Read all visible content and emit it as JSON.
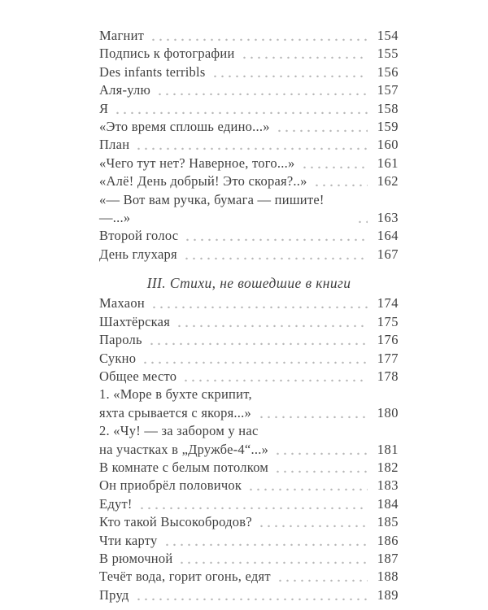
{
  "page": {
    "background_color": "#ffffff",
    "text_color": "#404040",
    "leader_dot_color": "#b7b7b7"
  },
  "toc": {
    "sections": [
      {
        "heading": null,
        "items": [
          {
            "lines": [
              "Магнит"
            ],
            "page": "154"
          },
          {
            "lines": [
              "Подпись к фотографии"
            ],
            "page": "155"
          },
          {
            "lines": [
              "Des infants terribls"
            ],
            "page": "156"
          },
          {
            "lines": [
              "Аля-улю"
            ],
            "page": "157"
          },
          {
            "lines": [
              "Я"
            ],
            "page": "158"
          },
          {
            "lines": [
              "«Это время сплошь едино...»"
            ],
            "page": "159"
          },
          {
            "lines": [
              "План"
            ],
            "page": "160"
          },
          {
            "lines": [
              "«Чего тут нет? Наверное, того...»"
            ],
            "page": "161"
          },
          {
            "lines": [
              "«Алё! День добрый! Это скорая?..»"
            ],
            "page": "162"
          },
          {
            "lines": [
              "«— Вот вам ручка, бумага — пишите! —...»"
            ],
            "page": "163"
          },
          {
            "lines": [
              "Второй голос"
            ],
            "page": "164"
          },
          {
            "lines": [
              "День глухаря"
            ],
            "page": "167"
          }
        ]
      },
      {
        "heading": "III. Стихи, не вошедшие в книги",
        "items": [
          {
            "lines": [
              "Махаон"
            ],
            "page": "174"
          },
          {
            "lines": [
              "Шахтёрская"
            ],
            "page": "175"
          },
          {
            "lines": [
              "Пароль"
            ],
            "page": "176"
          },
          {
            "lines": [
              "Сукно"
            ],
            "page": "177"
          },
          {
            "lines": [
              "Общее место"
            ],
            "page": "178"
          },
          {
            "lines": [
              "1. «Море в бухте скрипит,",
              "яхта срывается с якоря...»"
            ],
            "page": "180"
          },
          {
            "lines": [
              "2. «Чу! — за забором у нас",
              "на участках в „Дружбе-4“...»"
            ],
            "page": "181"
          },
          {
            "lines": [
              "В комнате с белым потолком"
            ],
            "page": "182"
          },
          {
            "lines": [
              "Он приобрёл половичок"
            ],
            "page": "183"
          },
          {
            "lines": [
              "Едут!"
            ],
            "page": "184"
          },
          {
            "lines": [
              "Кто такой Высокобродов?"
            ],
            "page": "185"
          },
          {
            "lines": [
              "Чти карту"
            ],
            "page": "186"
          },
          {
            "lines": [
              "В рюмочной"
            ],
            "page": "187"
          },
          {
            "lines": [
              "Течёт вода, горит огонь, едят"
            ],
            "page": "188"
          },
          {
            "lines": [
              "Пруд"
            ],
            "page": "189"
          }
        ]
      }
    ]
  }
}
